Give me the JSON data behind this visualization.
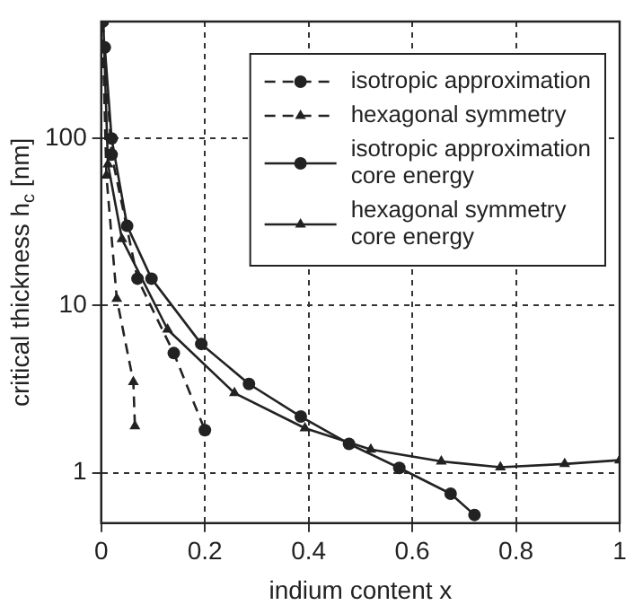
{
  "chart_data": {
    "type": "line",
    "xlabel": "indium content x",
    "ylabel": "critical thickness h$_{c}$ [nm]",
    "xlim": [
      0,
      1
    ],
    "xticks": [
      0,
      0.2,
      0.4,
      0.6,
      0.8,
      1
    ],
    "ylim": [
      0.5,
      500
    ],
    "yticks": [
      1,
      10,
      100
    ],
    "log": "y",
    "grid": true,
    "legend": "top right",
    "series": [
      {
        "name": "isotropic approximation",
        "color": "#222222",
        "line_style": "dashed",
        "marker": "circle",
        "x": [
          0.003,
          0.02,
          0.07,
          0.14,
          0.2
        ],
        "values": [
          500,
          80,
          14.5,
          5.2,
          1.8
        ]
      },
      {
        "name": "hexagonal symmetry",
        "color": "#222222",
        "line_style": "dashed",
        "marker": "triangle",
        "x": [
          0.002,
          0.01,
          0.03,
          0.062,
          0.065
        ],
        "values": [
          500,
          60,
          11,
          3.5,
          1.9
        ]
      },
      {
        "name": "isotropic approximation core energy",
        "color": "#222222",
        "line_style": "solid",
        "marker": "circle",
        "x": [
          0.007,
          0.02,
          0.05,
          0.097,
          0.193,
          0.285,
          0.385,
          0.478,
          0.575,
          0.674,
          0.72
        ],
        "values": [
          350,
          100,
          30,
          14.5,
          5.9,
          3.4,
          2.17,
          1.49,
          1.07,
          0.75,
          0.56
        ]
      },
      {
        "name": "hexagonal symmetry core energy",
        "color": "#222222",
        "line_style": "solid",
        "marker": "triangle",
        "x": [
          0.004,
          0.013,
          0.04,
          0.128,
          0.257,
          0.393,
          0.52,
          0.656,
          0.77,
          0.894,
          1
        ],
        "values": [
          500,
          70,
          25,
          7.2,
          3.0,
          1.85,
          1.38,
          1.17,
          1.08,
          1.13,
          1.19
        ]
      }
    ]
  }
}
